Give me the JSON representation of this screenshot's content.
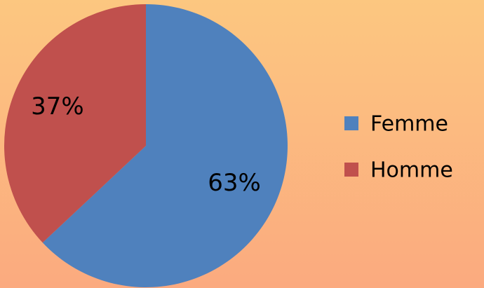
{
  "chart_data": {
    "type": "pie",
    "categories": [
      "Femme",
      "Homme"
    ],
    "values": [
      63,
      37
    ],
    "value_labels": [
      "63%",
      "37%"
    ],
    "colors": [
      "#4f81bd",
      "#c0504d"
    ],
    "legend": "right"
  }
}
